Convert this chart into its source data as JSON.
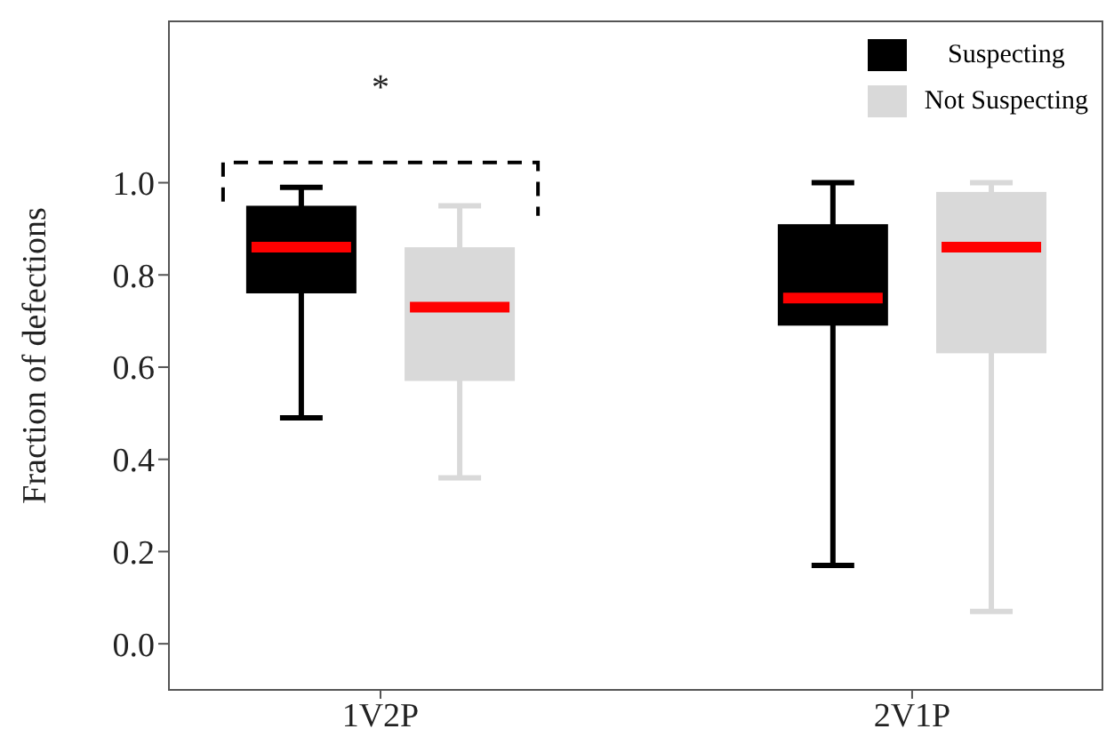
{
  "chart_data": {
    "type": "box",
    "ylabel": "Fraction of defections",
    "categories": [
      "1V2P",
      "2V1P"
    ],
    "series": [
      {
        "name": "Suspecting",
        "color": "#000000",
        "boxes": [
          {
            "low": 0.49,
            "q1": 0.76,
            "median": 0.86,
            "q3": 0.95,
            "high": 0.99
          },
          {
            "low": 0.17,
            "q1": 0.69,
            "median": 0.75,
            "q3": 0.91,
            "high": 1.0
          }
        ]
      },
      {
        "name": "Not Suspecting",
        "color": "#d9d9d9",
        "boxes": [
          {
            "low": 0.36,
            "q1": 0.57,
            "median": 0.73,
            "q3": 0.86,
            "high": 0.95
          },
          {
            "low": 0.07,
            "q1": 0.63,
            "median": 0.86,
            "q3": 0.98,
            "high": 1.0
          }
        ]
      }
    ],
    "ylim": [
      -0.1,
      1.35
    ],
    "yticks": [
      {
        "value": 0,
        "label": "0.0"
      },
      0.2,
      0.4,
      0.6,
      0.8,
      {
        "value": 1,
        "label": "1.0"
      }
    ],
    "annotations": [
      "*"
    ],
    "legend": "top right"
  }
}
